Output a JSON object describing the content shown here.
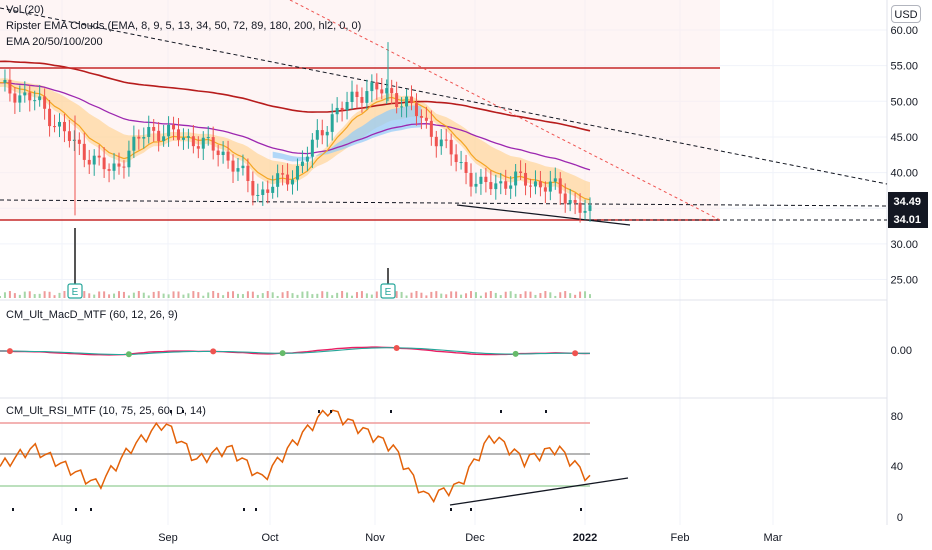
{
  "currency": "USD",
  "legend": {
    "vol": "Vol (20)",
    "clouds": "Ripster EMA Clouds (EMA, 8, 9, 5, 13, 34, 50, 72, 89, 180, 200, hl2, 0, 0)",
    "ema": "EMA 20/50/100/200"
  },
  "macd_label": "CM_Ult_MacD_MTF (60, 12, 26, 9)",
  "rsi_label": "CM_Ult_RSI_MTF (10, 75, 25, 60, D, 14)",
  "earnings_marker": "E",
  "colors": {
    "up": "#26a69a",
    "down": "#ef5350",
    "rsi": "#e36209",
    "ema200": "#b71c1c",
    "ema100": "#9c27b0",
    "resistance": "#c62828",
    "support_fill": "#ffcdd2",
    "cloud_orange": "#ffcc80",
    "cloud_blue": "#90caf9",
    "volume": "#787b86"
  },
  "chart_data": [
    {
      "type": "line",
      "title": "Price",
      "x": [
        "Aug",
        "Sep",
        "Oct",
        "Nov",
        "Dec",
        "2022",
        "Feb",
        "Mar"
      ],
      "ylim": [
        24,
        62
      ],
      "y_ticks": [
        "60.00",
        "55.00",
        "50.00",
        "45.00",
        "40.00",
        "35.00",
        "30.00",
        "25.00"
      ],
      "price_tags": [
        "34.49",
        "34.01"
      ],
      "approx_close_path": [
        52,
        50,
        44,
        40,
        46,
        45,
        43,
        37,
        40,
        48,
        52,
        50,
        44,
        38,
        39,
        38,
        34
      ],
      "levels": [
        54.8,
        34.01,
        34.49
      ]
    },
    {
      "type": "line",
      "title": "CM_Ult_MacD_MTF (60, 12, 26, 9)",
      "y_ticks": [
        "0.00"
      ]
    },
    {
      "type": "line",
      "title": "CM_Ult_RSI_MTF (10, 75, 25, 60, D, 14)",
      "ylim": [
        0,
        90
      ],
      "y_ticks": [
        "80",
        "40",
        "0"
      ],
      "bands": [
        75,
        25,
        60
      ],
      "values": [
        40,
        55,
        40,
        25,
        55,
        75,
        45,
        55,
        30,
        60,
        85,
        70,
        55,
        15,
        25,
        65,
        45,
        55,
        30
      ]
    }
  ]
}
